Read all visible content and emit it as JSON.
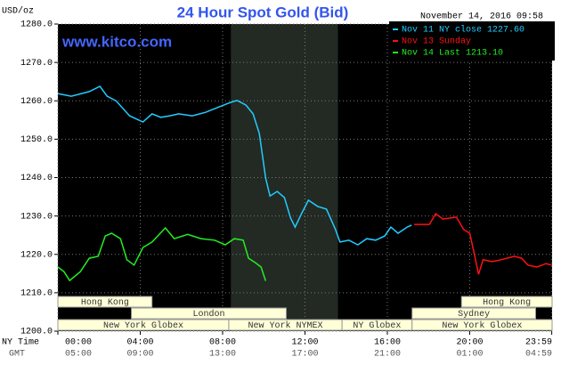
{
  "chart_data": {
    "type": "line",
    "title": "24 Hour Spot Gold (Bid)",
    "source": "www.kitco.com",
    "timestamp": "November 14, 2016 09:58",
    "y_label": "USD/oz",
    "x_label": "NY Time",
    "x2_label": "GMT",
    "xlim": [
      0,
      24
    ],
    "xticks": [
      {
        "value": 0,
        "label": "00:00"
      },
      {
        "value": 4,
        "label": "04:00"
      },
      {
        "value": 8,
        "label": "08:00"
      },
      {
        "value": 12,
        "label": "12:00"
      },
      {
        "value": 16,
        "label": "16:00"
      },
      {
        "value": 20,
        "label": "20:00"
      },
      {
        "value": 23.983,
        "label": "23:59"
      }
    ],
    "x2tick_labels": [
      "05:00",
      "09:00",
      "13:00",
      "17:00",
      "21:00",
      "01:00",
      "04:59"
    ],
    "ylim": [
      1200,
      1280
    ],
    "yticks": [
      {
        "value": 1200,
        "label": "1200.0"
      },
      {
        "value": 1210,
        "label": "1210.0"
      },
      {
        "value": 1220,
        "label": "1220.0"
      },
      {
        "value": 1230,
        "label": "1230.0"
      },
      {
        "value": 1240,
        "label": "1240.0"
      },
      {
        "value": 1250,
        "label": "1250.0"
      },
      {
        "value": 1260,
        "label": "1260.0"
      },
      {
        "value": 1270,
        "label": "1270.0"
      },
      {
        "value": 1280,
        "label": "1280.0"
      }
    ],
    "grid": true,
    "shaded_range": [
      8.4,
      13.6
    ],
    "series": [
      {
        "name": "Nov 11 NY close 1227.60",
        "color": "#22ccff",
        "x": [
          0,
          0.65,
          1.52,
          2.04,
          2.39,
          2.83,
          3.48,
          4.13,
          4.57,
          5.0,
          5.43,
          5.87,
          6.52,
          7.17,
          7.83,
          8.39,
          8.7,
          9.13,
          9.48,
          9.78,
          10.09,
          10.3,
          10.65,
          11.0,
          11.3,
          11.52,
          11.83,
          12.17,
          12.61,
          13.04,
          13.48,
          13.7,
          14.13,
          14.57,
          15.0,
          15.43,
          15.87,
          16.17,
          16.52,
          16.96,
          17.17
        ],
        "values": [
          1261.9,
          1261.2,
          1262.4,
          1263.8,
          1261.2,
          1260.0,
          1256.1,
          1254.5,
          1256.6,
          1255.7,
          1256.1,
          1256.6,
          1256.1,
          1257.0,
          1258.4,
          1259.6,
          1260.1,
          1258.9,
          1256.6,
          1251.5,
          1239.9,
          1235.2,
          1236.4,
          1234.8,
          1229.5,
          1227.1,
          1230.6,
          1234.1,
          1232.5,
          1231.8,
          1226.5,
          1223.2,
          1223.7,
          1222.5,
          1224.1,
          1223.7,
          1224.8,
          1227.1,
          1225.5,
          1227.1,
          1227.6
        ]
      },
      {
        "name": "Nov 13 Sunday",
        "color": "#ff1111",
        "x": [
          17.3,
          18.04,
          18.35,
          18.7,
          19.35,
          19.7,
          20.0,
          20.22,
          20.43,
          20.65,
          21.09,
          21.52,
          22.17,
          22.52,
          22.83,
          23.26,
          23.7,
          24.0
        ],
        "values": [
          1227.8,
          1227.8,
          1230.6,
          1229.2,
          1229.7,
          1226.5,
          1225.5,
          1220.2,
          1214.8,
          1218.6,
          1218.1,
          1218.6,
          1219.5,
          1219.0,
          1217.2,
          1216.7,
          1217.6,
          1217.2
        ]
      },
      {
        "name": "Nov 14 Last 1213.10",
        "color": "#22ee22",
        "x": [
          0,
          0.3,
          0.57,
          1.09,
          1.52,
          1.96,
          2.3,
          2.61,
          3.04,
          3.35,
          3.7,
          4.13,
          4.57,
          5.22,
          5.65,
          6.3,
          6.96,
          7.61,
          8.13,
          8.57,
          9.0,
          9.26,
          9.57,
          9.87,
          10.09
        ],
        "values": [
          1216.7,
          1215.5,
          1213.2,
          1215.5,
          1219.0,
          1219.5,
          1224.8,
          1225.5,
          1224.1,
          1218.6,
          1217.2,
          1221.8,
          1223.2,
          1226.9,
          1224.1,
          1225.2,
          1224.1,
          1223.7,
          1222.5,
          1224.1,
          1223.7,
          1219.0,
          1217.9,
          1216.7,
          1213.1
        ]
      }
    ],
    "sessions": [
      {
        "label": "Hong Kong",
        "start": 0,
        "end": 4.57,
        "row": 0
      },
      {
        "label": "London",
        "start": 3.57,
        "end": 11.09,
        "row": 1
      },
      {
        "label": "New York Globex",
        "start": 0,
        "end": 8.3,
        "row": 2
      },
      {
        "label": "New York NYMEX",
        "start": 8.3,
        "end": 13.8,
        "row": 2
      },
      {
        "label": "NY Globex",
        "start": 13.8,
        "end": 17.2,
        "row": 2
      },
      {
        "label": "Hong Kong",
        "start": 19.6,
        "end": 24,
        "row": 0
      },
      {
        "label": "Sydney",
        "start": 17.2,
        "end": 23.2,
        "row": 1
      },
      {
        "label": "New York Globex",
        "start": 17.2,
        "end": 24,
        "row": 2
      }
    ]
  }
}
